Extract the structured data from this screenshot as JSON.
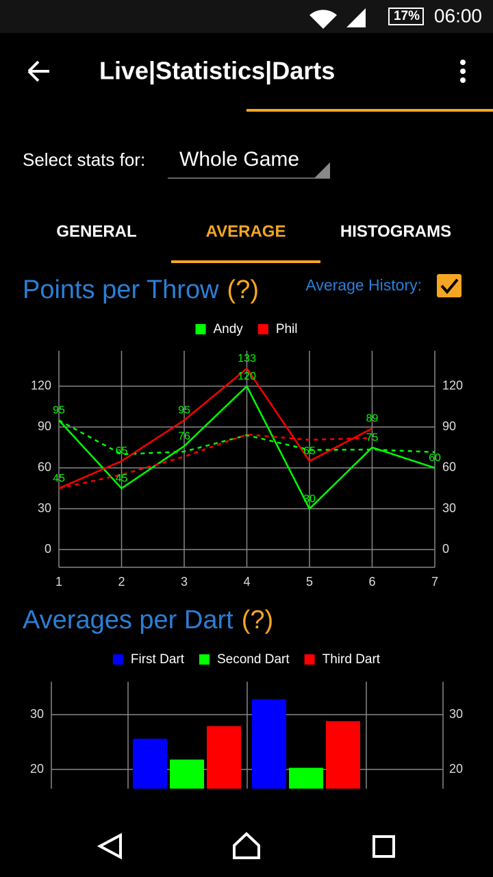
{
  "status_bar": {
    "battery": "17%",
    "time": "06:00"
  },
  "app_bar": {
    "title": "Live|Statistics|Darts"
  },
  "selector": {
    "label": "Select stats for:",
    "value": "Whole Game"
  },
  "tabs": {
    "items": [
      "GENERAL",
      "AVERAGE",
      "HISTOGRAMS"
    ],
    "active": 1
  },
  "average_history": {
    "label": "Average History:",
    "checked": true
  },
  "chart_data": [
    {
      "type": "line",
      "title": "Points per Throw",
      "help": "(?)",
      "x": [
        1,
        2,
        3,
        4,
        5,
        6,
        7
      ],
      "xlim": [
        1,
        7
      ],
      "xticks": [
        1,
        2,
        3,
        4,
        5,
        6,
        7
      ],
      "ylim": [
        -13,
        146
      ],
      "yticks": [
        0,
        30,
        60,
        90,
        120
      ],
      "grid": true,
      "label_color": "#00ff00",
      "series": [
        {
          "name": "Andy",
          "color": "#00ff00",
          "values": [
            95,
            45,
            76,
            120,
            30,
            75,
            60
          ],
          "average": [
            95,
            70,
            72,
            84,
            73.2,
            73.5,
            71.6
          ]
        },
        {
          "name": "Phil",
          "color": "#ff0000",
          "values": [
            45,
            65,
            95,
            133,
            65,
            89,
            null
          ],
          "average": [
            45,
            55,
            68.3,
            84.5,
            80.6,
            82,
            null
          ]
        }
      ]
    },
    {
      "type": "bar",
      "title": "Averages per Dart",
      "help": "(?)",
      "categories": [
        null,
        null
      ],
      "ylim": [
        16.5,
        36
      ],
      "yticks": [
        20,
        30
      ],
      "grid": true,
      "series": [
        {
          "name": "First Dart",
          "color": "#0000ff",
          "values": [
            25.6,
            32.8
          ]
        },
        {
          "name": "Second Dart",
          "color": "#00ff00",
          "values": [
            21.8,
            20.3
          ]
        },
        {
          "name": "Third Dart",
          "color": "#ff0000",
          "values": [
            27.9,
            28.8
          ]
        }
      ]
    }
  ]
}
